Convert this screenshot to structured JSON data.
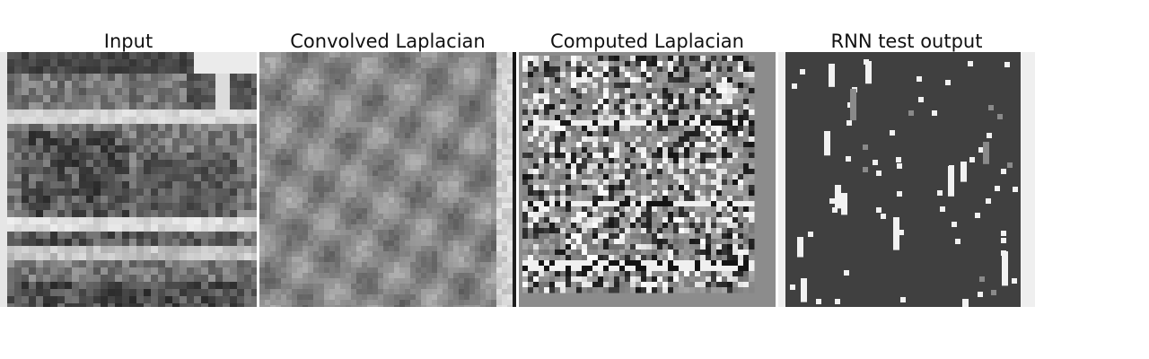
{
  "panels": [
    {
      "id": "input",
      "title": "Input",
      "style": "photo"
    },
    {
      "id": "convolved",
      "title": "Convolved Laplacian",
      "style": "texture"
    },
    {
      "id": "computed",
      "title": "Computed Laplacian",
      "style": "edges"
    },
    {
      "id": "rnn",
      "title": "RNN test output",
      "style": "sparse"
    }
  ],
  "colors": {
    "background": "#ffffff",
    "computed_frame": "#8c8c8c",
    "rnn_background": "#404040",
    "rnn_right_edge": "#efefef",
    "rnn_dot": "#f2f2f2"
  }
}
